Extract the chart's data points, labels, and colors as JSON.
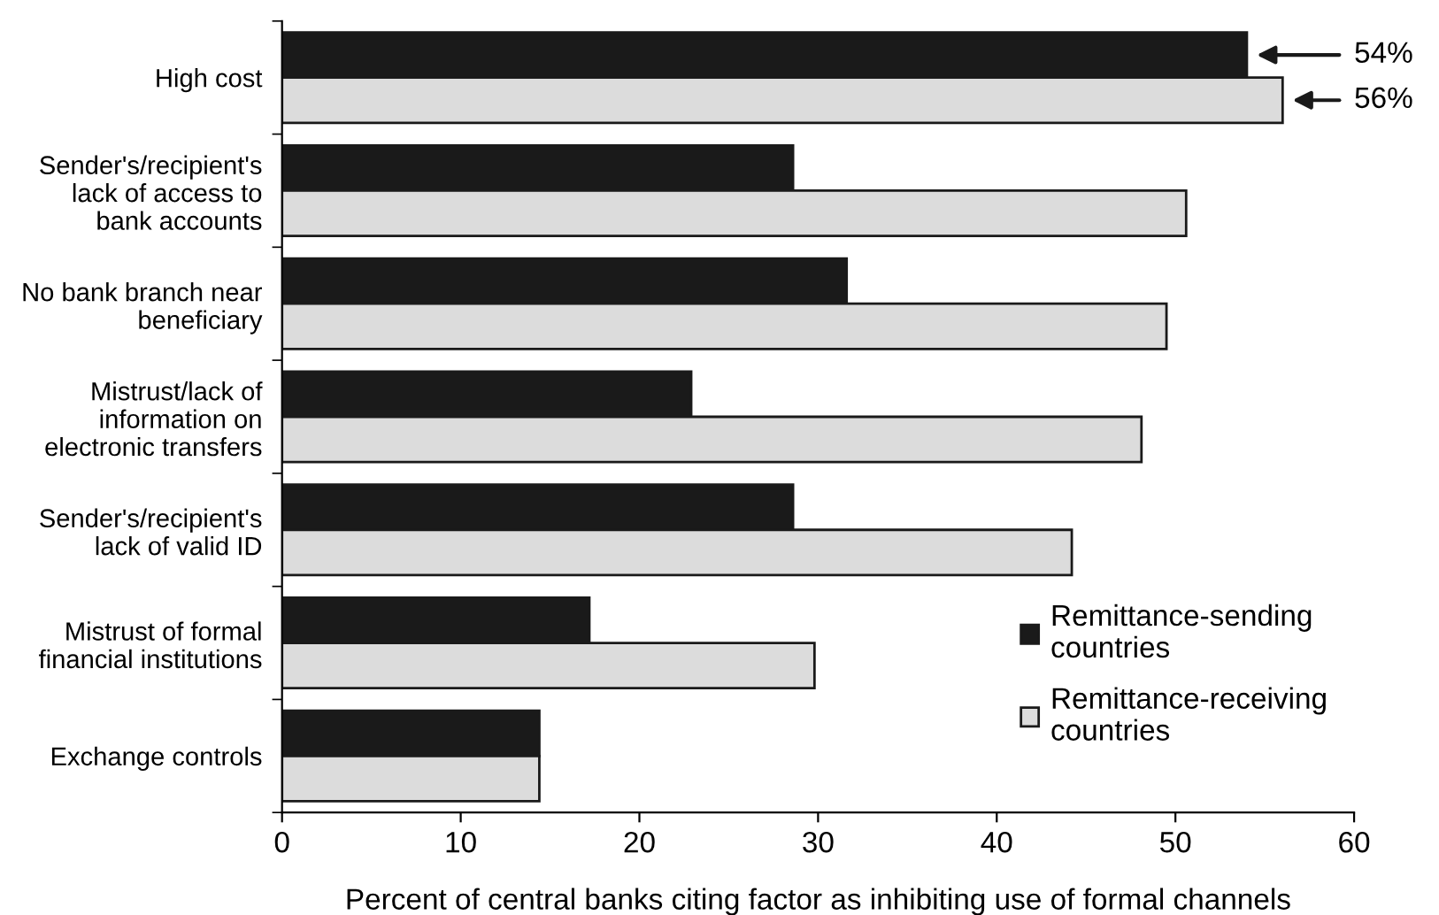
{
  "chart_data": {
    "type": "bar",
    "orientation": "horizontal",
    "categories": [
      "High cost",
      "Sender's/recipient's\nlack of access to\nbank accounts",
      "No bank branch near\nbeneficiary",
      "Mistrust/lack of\ninformation on\nelectronic transfers",
      "Sender's/recipient's\nlack of valid ID",
      "Mistrust of formal\nfinancial institutions",
      "Exchange controls"
    ],
    "series": [
      {
        "name": "Remittance-sending\ncountries",
        "color": "#1a1a1a",
        "values": [
          54,
          28.6,
          31.6,
          22.9,
          28.6,
          17.2,
          14.4
        ],
        "value_labels": [
          "54%",
          null,
          null,
          null,
          null,
          null,
          null
        ]
      },
      {
        "name": "Remittance-receiving\ncountries",
        "color": "#dcdcdc",
        "values": [
          56,
          50.6,
          49.5,
          48.1,
          44.2,
          29.8,
          14.4
        ],
        "value_labels": [
          "56%",
          null,
          null,
          null,
          null,
          null,
          null
        ]
      }
    ],
    "xlabel": "Percent of central banks citing factor as inhibiting use of formal channels",
    "xlim": [
      0,
      60
    ],
    "xticks": [
      0,
      10,
      20,
      30,
      40,
      50,
      60
    ],
    "grid": false,
    "legend": "bottom right"
  }
}
